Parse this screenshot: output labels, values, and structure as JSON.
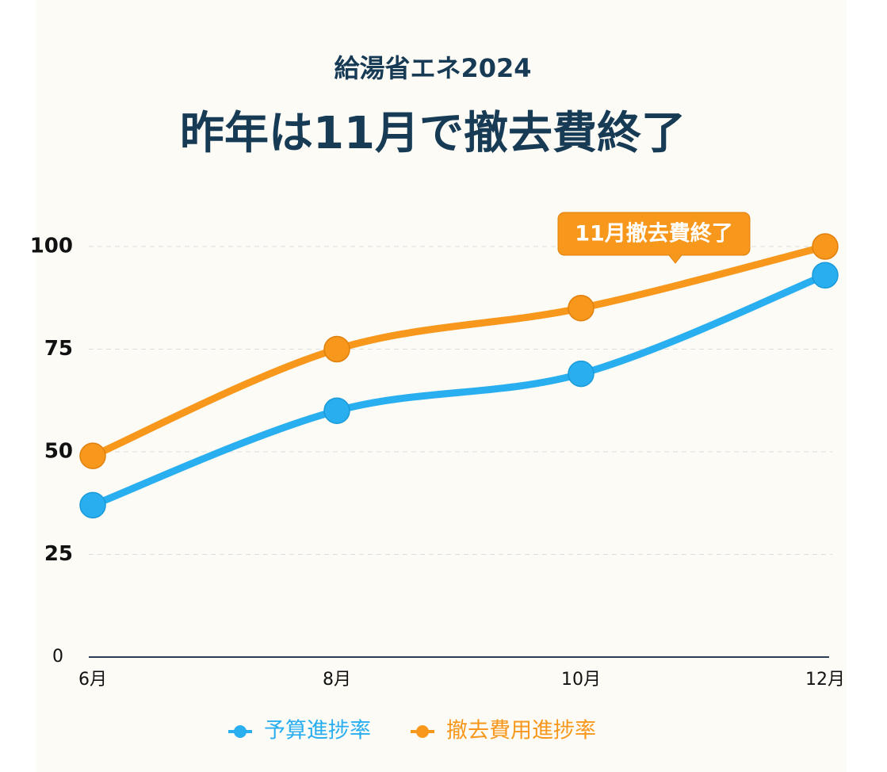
{
  "chart_data": {
    "type": "line",
    "title": "給湯省エネ2024",
    "subtitle": "昨年は11月で撤去費終了",
    "annotation": "11月撤去費終了",
    "categories": [
      "6月",
      "8月",
      "10月",
      "12月"
    ],
    "series": [
      {
        "name": "予算進捗率",
        "color": "#29aef0",
        "values": [
          37,
          60,
          69,
          93
        ]
      },
      {
        "name": "撤去費用進捗率",
        "color": "#f7981d",
        "values": [
          49,
          75,
          85,
          100
        ]
      }
    ],
    "ylim": [
      0,
      100
    ],
    "yticks": [
      0,
      25,
      50,
      75,
      100
    ],
    "grid": true
  }
}
